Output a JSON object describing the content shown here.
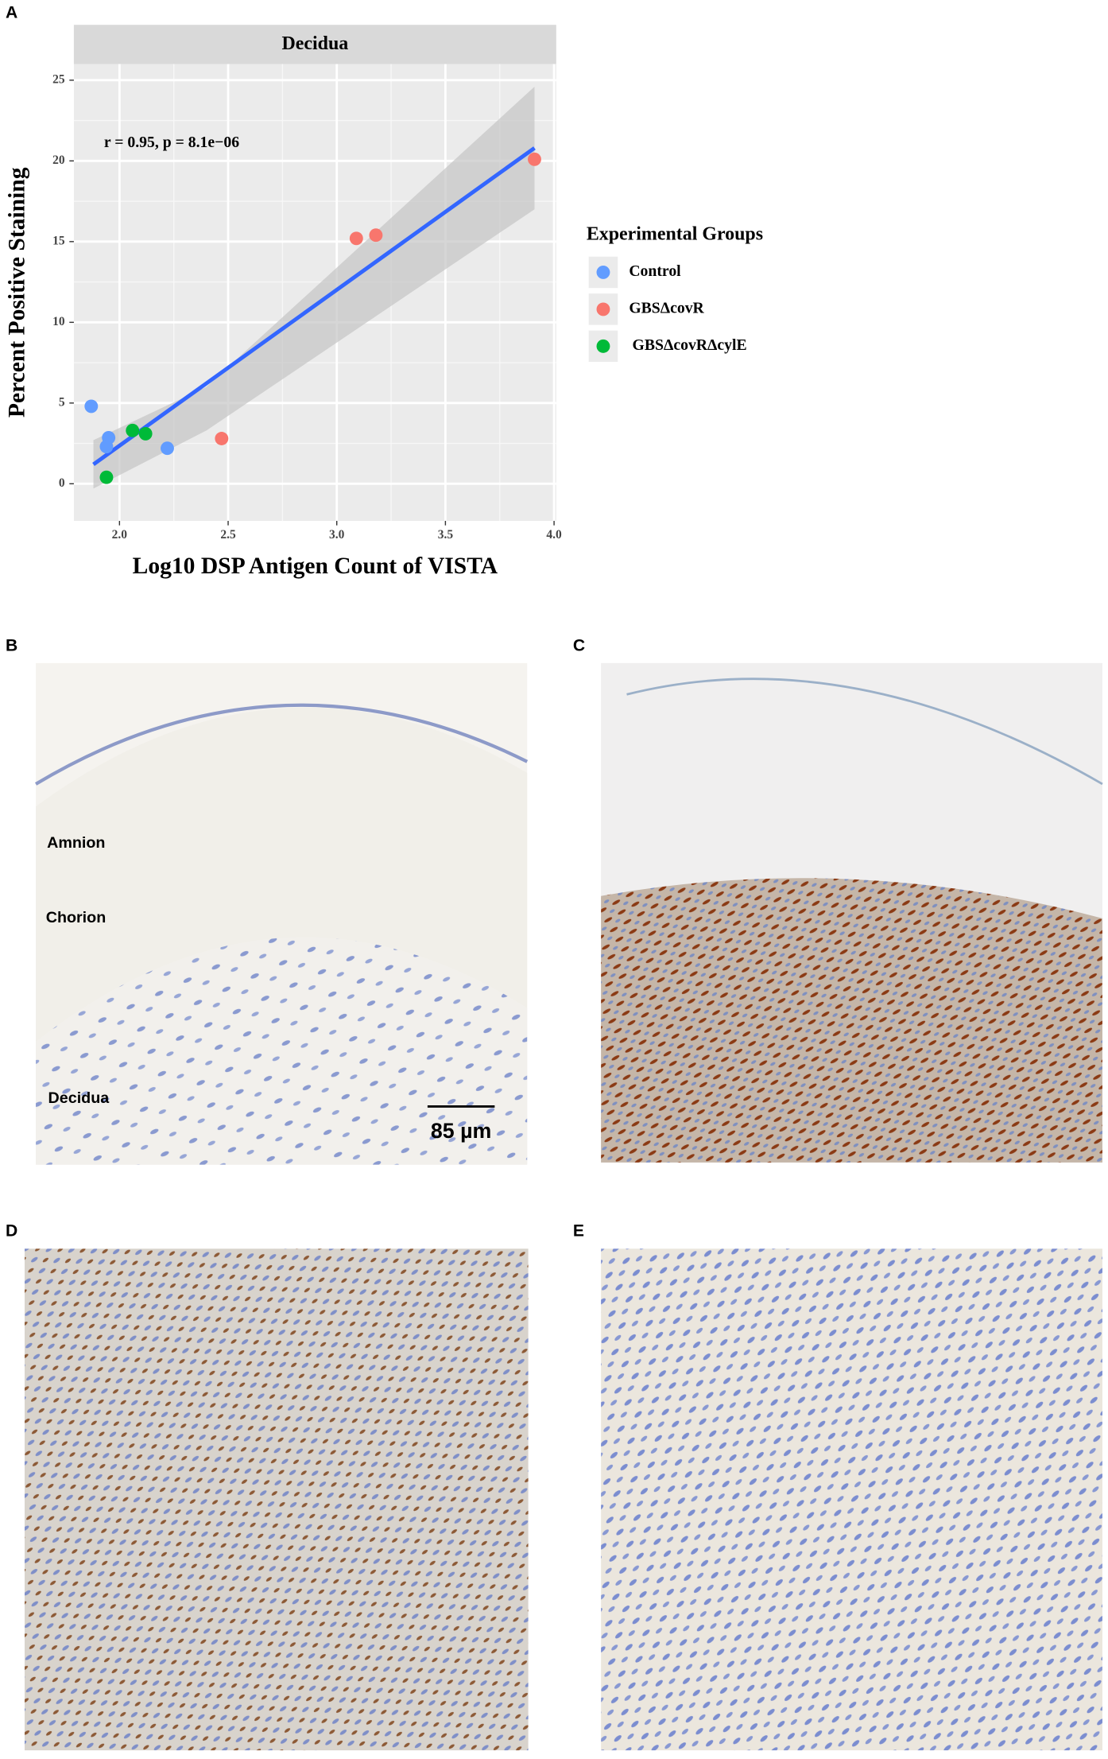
{
  "chart_data": {
    "type": "scatter",
    "title": "Decidua",
    "x_label": "Log10 DSP Antigen Count of VISTA",
    "y_label": "Percent Positive Staining",
    "annotation": "r = 0.95, p = 8.1e−06",
    "legend_title": "Experimental Groups",
    "legend_position": "right",
    "grid": true,
    "xlim": [
      1.79,
      4.01
    ],
    "ylim": [
      -2.3,
      26
    ],
    "xticks": [
      {
        "value": 2,
        "label": "2.0"
      },
      {
        "value": 2.5,
        "label": "2.5"
      },
      {
        "value": 3,
        "label": "3.0"
      },
      {
        "value": 3.5,
        "label": "3.5"
      },
      {
        "value": 4,
        "label": "4.0"
      }
    ],
    "yticks": [
      0,
      5,
      10,
      15,
      20,
      25
    ],
    "series": [
      {
        "name": "Control",
        "color": "#619cff",
        "x": [
          1.87,
          1.95,
          1.94,
          2.22
        ],
        "values": [
          4.8,
          2.85,
          2.3,
          2.2
        ]
      },
      {
        "name": "GBSΔcovR",
        "color": "#f8766d",
        "x": [
          2.47,
          3.09,
          3.18,
          3.91
        ],
        "values": [
          2.8,
          15.2,
          15.4,
          20.1
        ]
      },
      {
        "name": "GBSΔcovRΔcylE",
        "color": "#00ba38",
        "x": [
          2.06,
          2.12,
          1.94
        ],
        "values": [
          3.3,
          3.1,
          0.4
        ]
      }
    ],
    "trend": {
      "color": "#3366ff",
      "x": [
        1.88,
        3.91
      ],
      "values": [
        1.2,
        20.8
      ]
    },
    "band": {
      "x": [
        1.88,
        2.4,
        3.91
      ],
      "lower": [
        -0.3,
        3.3,
        17.0
      ],
      "upper": [
        2.7,
        6.0,
        24.6
      ]
    }
  },
  "panels": {
    "labels": [
      "A",
      "B",
      "C",
      "D",
      "E"
    ],
    "b_annotations": [
      "Amnion",
      "Chorion",
      "Decidua"
    ],
    "scale_bar": "85 µm"
  }
}
